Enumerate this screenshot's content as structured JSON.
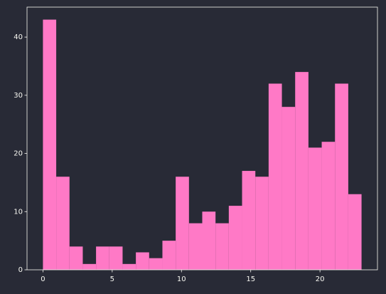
{
  "chart_data": {
    "type": "histogram",
    "bins": [
      0,
      0.9583,
      1.9167,
      2.875,
      3.8333,
      4.7917,
      5.75,
      6.7083,
      7.6667,
      8.625,
      9.5833,
      10.5417,
      11.5,
      12.4583,
      13.4167,
      14.375,
      15.3333,
      16.2917,
      17.25,
      18.2083,
      19.1667,
      20.125,
      21.0833,
      22.0417,
      23
    ],
    "values": [
      43,
      16,
      4,
      1,
      4,
      4,
      1,
      3,
      2,
      5,
      16,
      8,
      10,
      8,
      11,
      17,
      16,
      32,
      28,
      34,
      21,
      22,
      32,
      13
    ],
    "color": "#ff79c6",
    "xlim": [
      -1.15,
      24.15
    ],
    "xticks": [
      0,
      5,
      10,
      15,
      20
    ],
    "ylim": [
      0,
      45.15
    ],
    "yticks": [
      0,
      10,
      20,
      30,
      40
    ],
    "grid": false
  }
}
